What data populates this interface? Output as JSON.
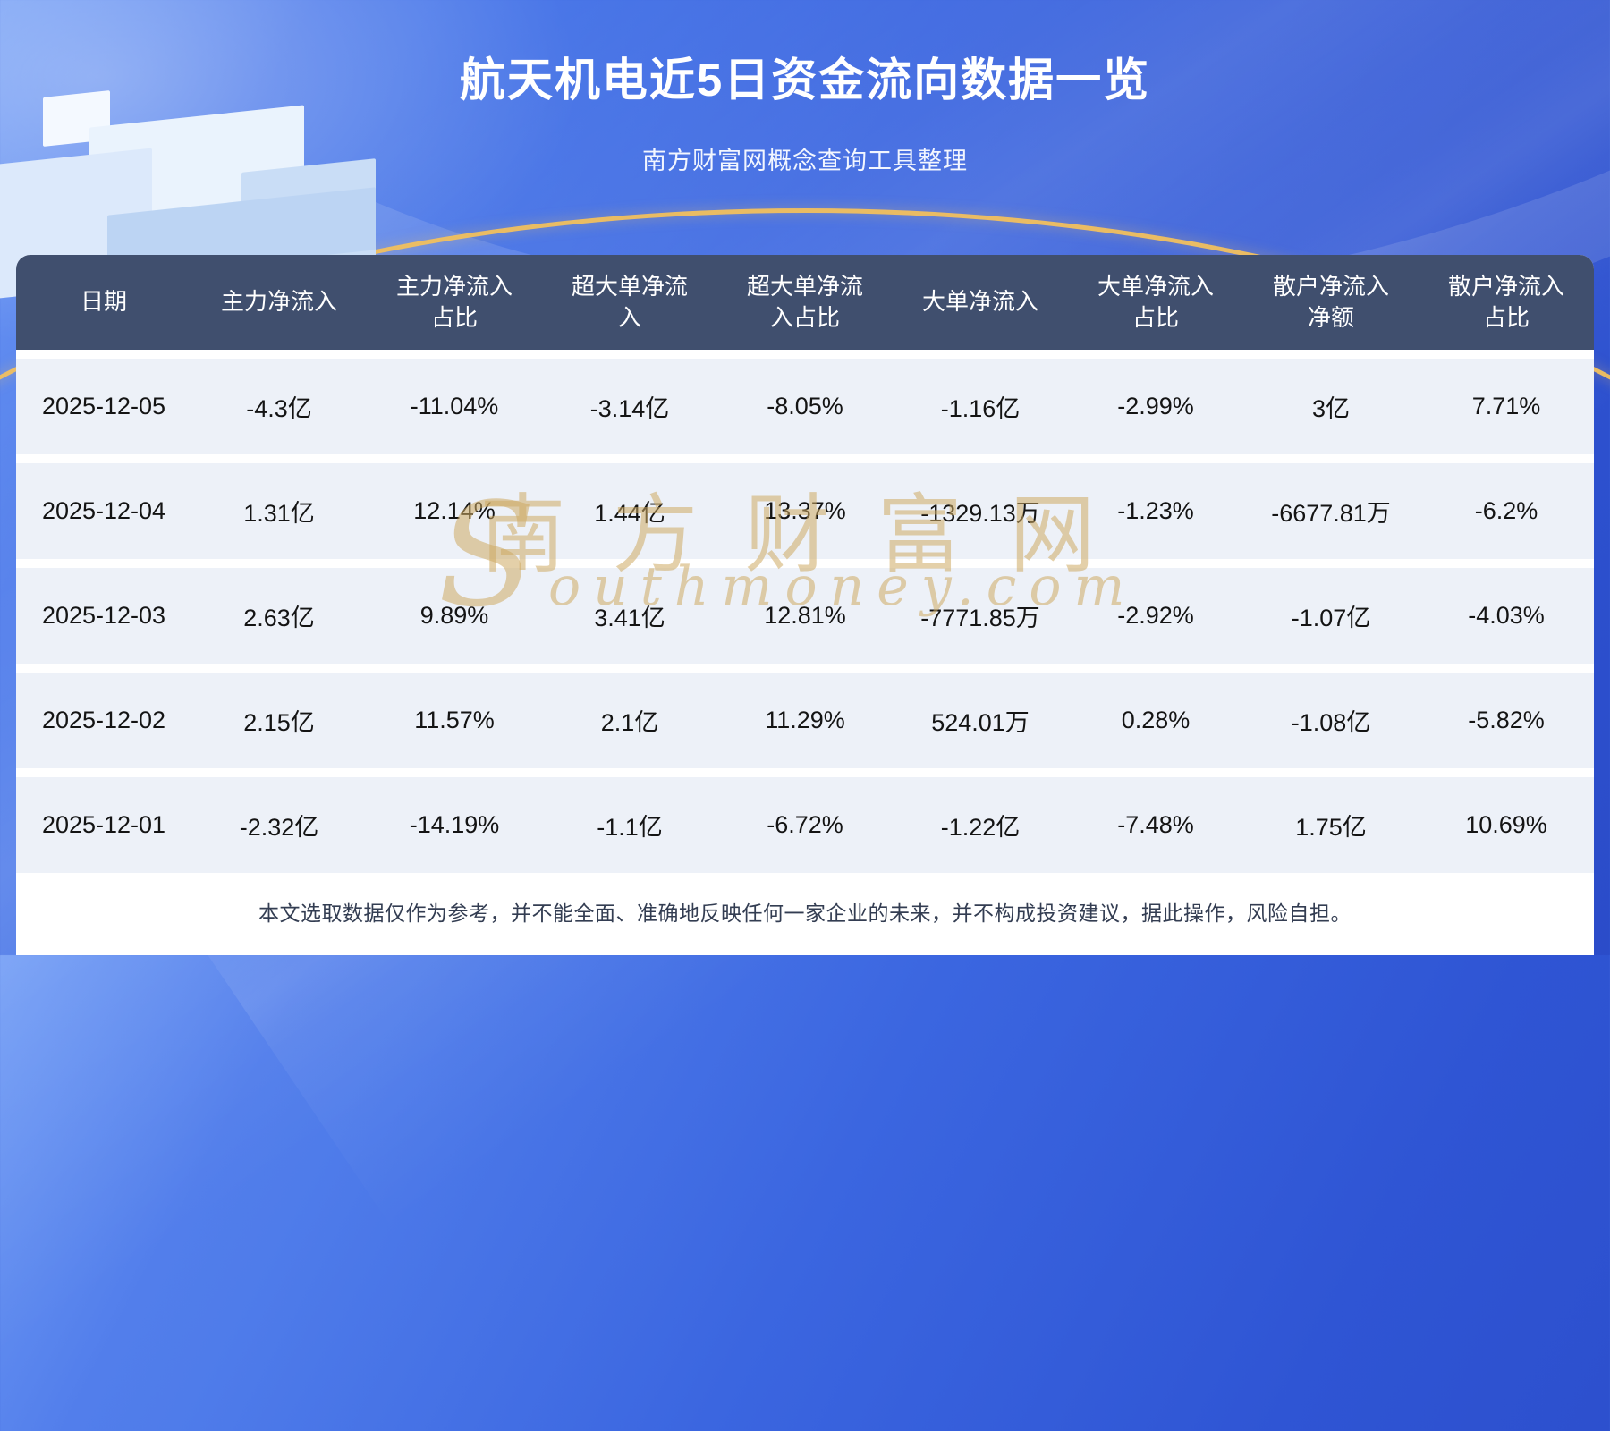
{
  "header": {
    "title": "航天机电近5日资金流向数据一览",
    "subtitle": "南方财富网概念查询工具整理"
  },
  "watermark": {
    "cn": "南方财富网",
    "en": "Southmoney.com"
  },
  "display": {
    "headers": [
      "日期",
      "主力净流入",
      "主力净流入\n占比",
      "超大单净流\n入",
      "超大单净流\n入占比",
      "大单净流入",
      "大单净流入\n占比",
      "散户净流入\n净额",
      "散户净流入\n占比"
    ]
  },
  "chart_data": {
    "type": "table",
    "title": "航天机电近5日资金流向数据一览",
    "subtitle": "南方财富网概念查询工具整理",
    "columns": [
      "日期",
      "主力净流入",
      "主力净流入占比",
      "超大单净流入",
      "超大单净流入占比",
      "大单净流入",
      "大单净流入占比",
      "散户净流入净额",
      "散户净流入占比"
    ],
    "rows": [
      [
        "2025-12-05",
        "-4.3亿",
        "-11.04%",
        "-3.14亿",
        "-8.05%",
        "-1.16亿",
        "-2.99%",
        "3亿",
        "7.71%"
      ],
      [
        "2025-12-04",
        "1.31亿",
        "12.14%",
        "1.44亿",
        "13.37%",
        "-1329.13万",
        "-1.23%",
        "-6677.81万",
        "-6.2%"
      ],
      [
        "2025-12-03",
        "2.63亿",
        "9.89%",
        "3.41亿",
        "12.81%",
        "-7771.85万",
        "-2.92%",
        "-1.07亿",
        "-4.03%"
      ],
      [
        "2025-12-02",
        "2.15亿",
        "11.57%",
        "2.1亿",
        "11.29%",
        "524.01万",
        "0.28%",
        "-1.08亿",
        "-5.82%"
      ],
      [
        "2025-12-01",
        "-2.32亿",
        "-14.19%",
        "-1.1亿",
        "-6.72%",
        "-1.22亿",
        "-7.48%",
        "1.75亿",
        "10.69%"
      ]
    ]
  },
  "footer": {
    "disclaimer": "本文选取数据仅作为参考，并不能全面、准确地反映任何一家企业的未来，并不构成投资建议，据此操作，风险自担。"
  },
  "colors": {
    "page_blue": "#3b66e0",
    "table_header_bg": "#404f6e",
    "row_tint": "#edf1f8",
    "accent_gold": "#f3c05e",
    "watermark_gold": "#cda962"
  }
}
